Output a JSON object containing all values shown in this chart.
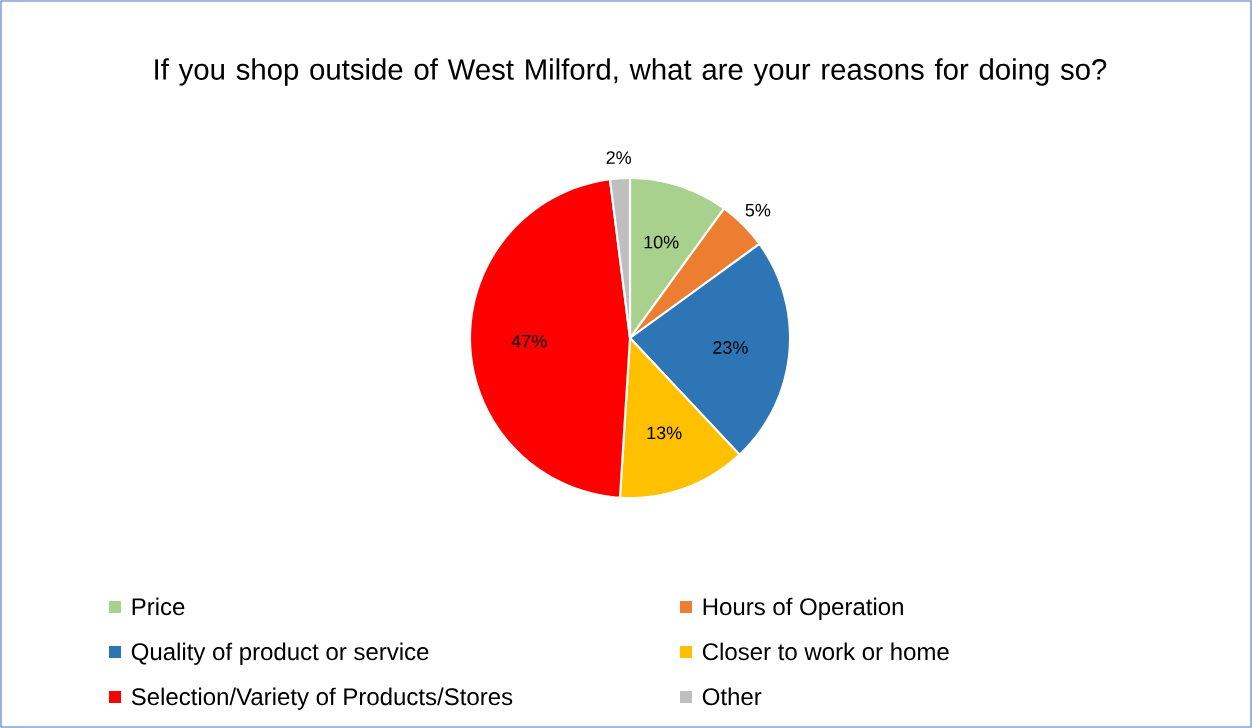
{
  "chart_data": {
    "type": "pie",
    "title": "If you shop outside of West Milford, what are your reasons for doing so?",
    "categories": [
      "Price",
      "Hours of Operation",
      "Quality of product or service",
      "Closer to work or home",
      "Selection/Variety of Products/Stores",
      "Other"
    ],
    "values": [
      10,
      5,
      23,
      13,
      47,
      2
    ],
    "colors": [
      "#a9d18e",
      "#ed7d31",
      "#2e75b6",
      "#ffc000",
      "#ff0000",
      "#bfbfbf"
    ],
    "value_labels": [
      "10%",
      "5%",
      "23%",
      "13%",
      "47%",
      "2%"
    ],
    "legend": "bottom"
  }
}
